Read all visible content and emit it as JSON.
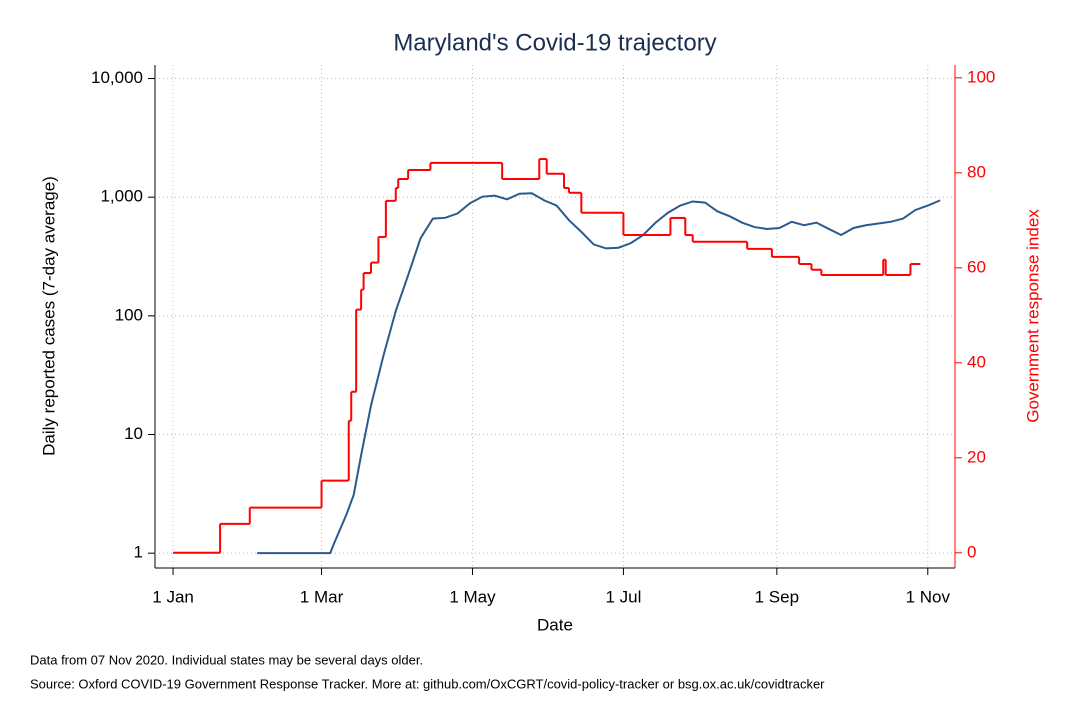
{
  "chart_data": {
    "type": "line",
    "title": "Maryland's Covid-19 trajectory",
    "x_label": "Date",
    "y_label": "Daily reported cases (7-day average)",
    "y2_label": "Government response index",
    "notes": [
      "Data from 07 Nov 2020. Individual states may be several days older.",
      "Source: Oxford COVID-19 Government Response Tracker. More at: github.com/OxCGRT/covid-policy-tracker or bsg.ox.ac.uk/covidtracker"
    ],
    "log_y": true,
    "grid": true,
    "xlim": [
      -7.3,
      316
    ],
    "xticks": [
      {
        "value": 0,
        "label": "1 Jan"
      },
      {
        "value": 60,
        "label": "1 Mar"
      },
      {
        "value": 121,
        "label": "1 May"
      },
      {
        "value": 182,
        "label": "1 Jul"
      },
      {
        "value": 244,
        "label": "1 Sep"
      },
      {
        "value": 305,
        "label": "1 Nov"
      }
    ],
    "ylim": [
      0.75,
      13000
    ],
    "yticks": [
      1,
      10,
      100,
      {
        "value": 1000,
        "label": "1,000"
      },
      {
        "value": 10000,
        "label": "10,000"
      }
    ],
    "y2lim": [
      -3.2,
      102.7
    ],
    "y2ticks": [
      0,
      20,
      40,
      60,
      80,
      100
    ],
    "series": [
      {
        "color": "#2a5b8c",
        "x": [
          34,
          63.5,
          65,
          70,
          73,
          76,
          80,
          85,
          90,
          95,
          100,
          105,
          110,
          115,
          120,
          125,
          130,
          135,
          140,
          145,
          150,
          155,
          160,
          165,
          170,
          175,
          180,
          185,
          190,
          195,
          200,
          205,
          210,
          215,
          220,
          225,
          230,
          235,
          240,
          245,
          250,
          255,
          260,
          265,
          270,
          275,
          280,
          285,
          290,
          295,
          300,
          305,
          310
        ],
        "values": [
          1,
          1,
          1.2,
          2.1,
          3.1,
          6.7,
          17.6,
          46,
          110,
          220,
          450,
          660,
          670,
          730,
          890,
          1010,
          1030,
          960,
          1070,
          1080,
          940,
          850,
          640,
          510,
          400,
          370,
          375,
          410,
          480,
          610,
          740,
          850,
          920,
          900,
          760,
          690,
          610,
          560,
          540,
          550,
          620,
          580,
          610,
          540,
          480,
          550,
          580,
          600,
          620,
          660,
          780,
          850,
          940
        ]
      },
      {
        "color": "#ff0000",
        "axis": "y2",
        "step": true,
        "x": [
          0,
          19,
          31,
          60,
          71,
          72,
          74,
          76,
          77,
          80,
          83,
          86,
          90,
          91,
          95,
          104,
          133,
          148,
          151,
          158,
          160,
          165,
          182,
          201,
          207,
          210,
          232,
          242,
          253,
          258,
          262,
          287,
          288,
          298,
          302
        ],
        "values": [
          0,
          6.1,
          9.5,
          15.2,
          27.8,
          33.9,
          51.2,
          55.4,
          58.9,
          61.1,
          66.5,
          74.1,
          76.8,
          78.7,
          80.6,
          82.1,
          78.7,
          82.9,
          79.8,
          76.8,
          75.8,
          71.6,
          66.9,
          70.5,
          66.9,
          65.5,
          64.0,
          62.3,
          60.8,
          59.6,
          58.5,
          61.7,
          58.5,
          60.8,
          60.8
        ]
      }
    ]
  }
}
